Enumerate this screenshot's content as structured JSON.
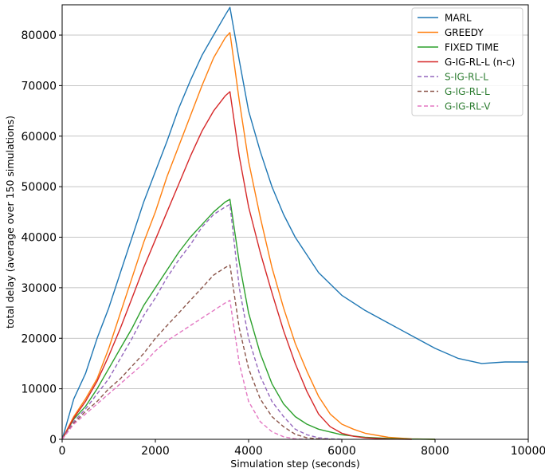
{
  "chart_data": {
    "type": "line",
    "xlabel": "Simulation step (seconds)",
    "ylabel": "total delay (average over 150 simulations)",
    "xlim": [
      0,
      10000
    ],
    "ylim": [
      0,
      86000
    ],
    "xticks": [
      0,
      2000,
      4000,
      6000,
      8000,
      10000
    ],
    "yticks": [
      0,
      10000,
      20000,
      30000,
      40000,
      50000,
      60000,
      70000,
      80000
    ],
    "grid": "horizontal",
    "legend_position": "top-right",
    "series": [
      {
        "name": "MARL",
        "color": "#1f77b4",
        "style": "solid",
        "x": [
          0,
          250,
          500,
          750,
          1000,
          1250,
          1500,
          1750,
          2000,
          2250,
          2500,
          2750,
          3000,
          3250,
          3500,
          3600,
          3800,
          4000,
          4250,
          4500,
          4750,
          5000,
          5500,
          6000,
          6500,
          7000,
          7500,
          8000,
          8500,
          9000,
          9500,
          10000
        ],
        "values": [
          0,
          8000,
          13000,
          20000,
          26000,
          33000,
          40000,
          47000,
          53000,
          59000,
          65500,
          71000,
          76000,
          80000,
          84000,
          85500,
          75000,
          65000,
          57000,
          50000,
          44500,
          40000,
          33000,
          28500,
          25500,
          23000,
          20500,
          18000,
          16000,
          15000,
          15300,
          15300
        ]
      },
      {
        "name": "GREEDY",
        "color": "#ff7f0e",
        "style": "solid",
        "x": [
          0,
          250,
          500,
          750,
          1000,
          1250,
          1500,
          1750,
          2000,
          2250,
          2500,
          2750,
          3000,
          3250,
          3500,
          3600,
          3800,
          4000,
          4250,
          4500,
          4750,
          5000,
          5250,
          5500,
          5750,
          6000,
          6250,
          6500,
          7000,
          7500,
          8000
        ],
        "values": [
          0,
          4500,
          8000,
          12000,
          18000,
          25000,
          32000,
          39000,
          45000,
          52000,
          58000,
          64000,
          70000,
          75500,
          79500,
          80500,
          67000,
          55000,
          44000,
          34000,
          26000,
          19000,
          13500,
          8500,
          5000,
          3000,
          2000,
          1200,
          400,
          100,
          0
        ]
      },
      {
        "name": "FIXED TIME",
        "color": "#2ca02c",
        "style": "solid",
        "x": [
          0,
          250,
          500,
          750,
          1000,
          1250,
          1500,
          1750,
          2000,
          2250,
          2500,
          2750,
          3000,
          3250,
          3500,
          3600,
          3800,
          4000,
          4250,
          4500,
          4750,
          5000,
          5250,
          5500,
          6000,
          6500,
          7000,
          7500,
          8000
        ],
        "values": [
          0,
          4000,
          6500,
          10000,
          14000,
          18000,
          22000,
          26500,
          30000,
          33500,
          37000,
          40000,
          42500,
          45000,
          47000,
          47500,
          35000,
          25000,
          17000,
          11000,
          7000,
          4500,
          3000,
          2000,
          900,
          400,
          150,
          50,
          0
        ]
      },
      {
        "name": "G-IG-RL-L (n-c)",
        "color": "#d62728",
        "style": "solid",
        "x": [
          0,
          250,
          500,
          750,
          1000,
          1250,
          1500,
          1750,
          2000,
          2250,
          2500,
          2750,
          3000,
          3250,
          3500,
          3600,
          3800,
          4000,
          4250,
          4500,
          4750,
          5000,
          5250,
          5500,
          5750,
          6000,
          6250,
          6500,
          7000,
          7500
        ],
        "values": [
          0,
          4200,
          7500,
          11500,
          16500,
          22000,
          28000,
          34000,
          39500,
          45000,
          50500,
          56000,
          61000,
          65000,
          68000,
          68800,
          56000,
          46000,
          37000,
          29000,
          21500,
          15000,
          9500,
          5000,
          2500,
          1200,
          600,
          300,
          50,
          0
        ]
      },
      {
        "name": "S-IG-RL-L",
        "color": "#9467bd",
        "style": "dashed",
        "x": [
          0,
          250,
          500,
          750,
          1000,
          1250,
          1500,
          1750,
          2000,
          2250,
          2500,
          2750,
          3000,
          3250,
          3500,
          3600,
          3800,
          4000,
          4250,
          4500,
          4750,
          5000,
          5250,
          5500,
          5750,
          6000
        ],
        "values": [
          0,
          3500,
          6000,
          9000,
          12000,
          16000,
          20000,
          24500,
          28000,
          32000,
          35500,
          38500,
          42000,
          44500,
          46000,
          46500,
          30000,
          20000,
          12500,
          7500,
          4500,
          2000,
          900,
          300,
          100,
          0
        ]
      },
      {
        "name": "G-IG-RL-L",
        "color": "#8c564b",
        "style": "dashed",
        "x": [
          0,
          250,
          500,
          750,
          1000,
          1250,
          1500,
          1750,
          2000,
          2250,
          2500,
          2750,
          3000,
          3250,
          3500,
          3600,
          3800,
          4000,
          4250,
          4500,
          4750,
          5000,
          5250,
          5500,
          5750
        ],
        "values": [
          0,
          3200,
          5500,
          7500,
          10000,
          12000,
          14500,
          17000,
          20000,
          22500,
          25000,
          27500,
          30000,
          32500,
          34000,
          34500,
          22000,
          14000,
          8000,
          4500,
          2500,
          1000,
          300,
          100,
          0
        ]
      },
      {
        "name": "G-IG-RL-V",
        "color": "#e377c2",
        "style": "dashed",
        "x": [
          0,
          250,
          500,
          750,
          1000,
          1250,
          1500,
          1750,
          2000,
          2250,
          2500,
          2750,
          3000,
          3250,
          3500,
          3600,
          3800,
          4000,
          4250,
          4500,
          4750,
          5000,
          5250
        ],
        "values": [
          0,
          3000,
          5000,
          7000,
          9000,
          11000,
          13000,
          15000,
          17500,
          19500,
          21000,
          22500,
          24000,
          25500,
          27000,
          27500,
          15000,
          7500,
          3500,
          1500,
          500,
          100,
          0
        ]
      }
    ]
  }
}
